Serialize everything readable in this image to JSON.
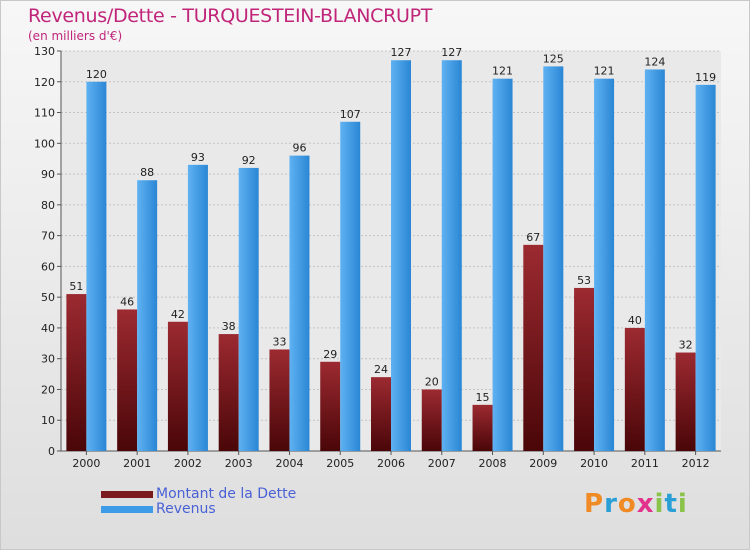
{
  "title": "Revenus/Dette - TURQUESTEIN-BLANCRUPT",
  "subtitle": "(en milliers d'€)",
  "logo": "Proxiti",
  "colors": {
    "dette": "#7a1a1f",
    "revenus": "#3d9be8",
    "title": "#c0257a",
    "legend_text": "#4a61d6"
  },
  "chart_data": {
    "type": "bar",
    "categories": [
      "2000",
      "2001",
      "2002",
      "2003",
      "2004",
      "2005",
      "2006",
      "2007",
      "2008",
      "2009",
      "2010",
      "2011",
      "2012"
    ],
    "series": [
      {
        "name": "Montant de la Dette",
        "values": [
          51,
          46,
          42,
          38,
          33,
          29,
          24,
          20,
          15,
          67,
          53,
          40,
          32
        ]
      },
      {
        "name": "Revenus",
        "values": [
          120,
          88,
          93,
          92,
          96,
          107,
          127,
          127,
          121,
          125,
          121,
          124,
          119
        ]
      }
    ],
    "ylim": [
      0,
      130
    ],
    "yticks": [
      0,
      10,
      20,
      30,
      40,
      50,
      60,
      70,
      80,
      90,
      100,
      110,
      120,
      130
    ],
    "grid": true,
    "legend": "bottom-left"
  }
}
